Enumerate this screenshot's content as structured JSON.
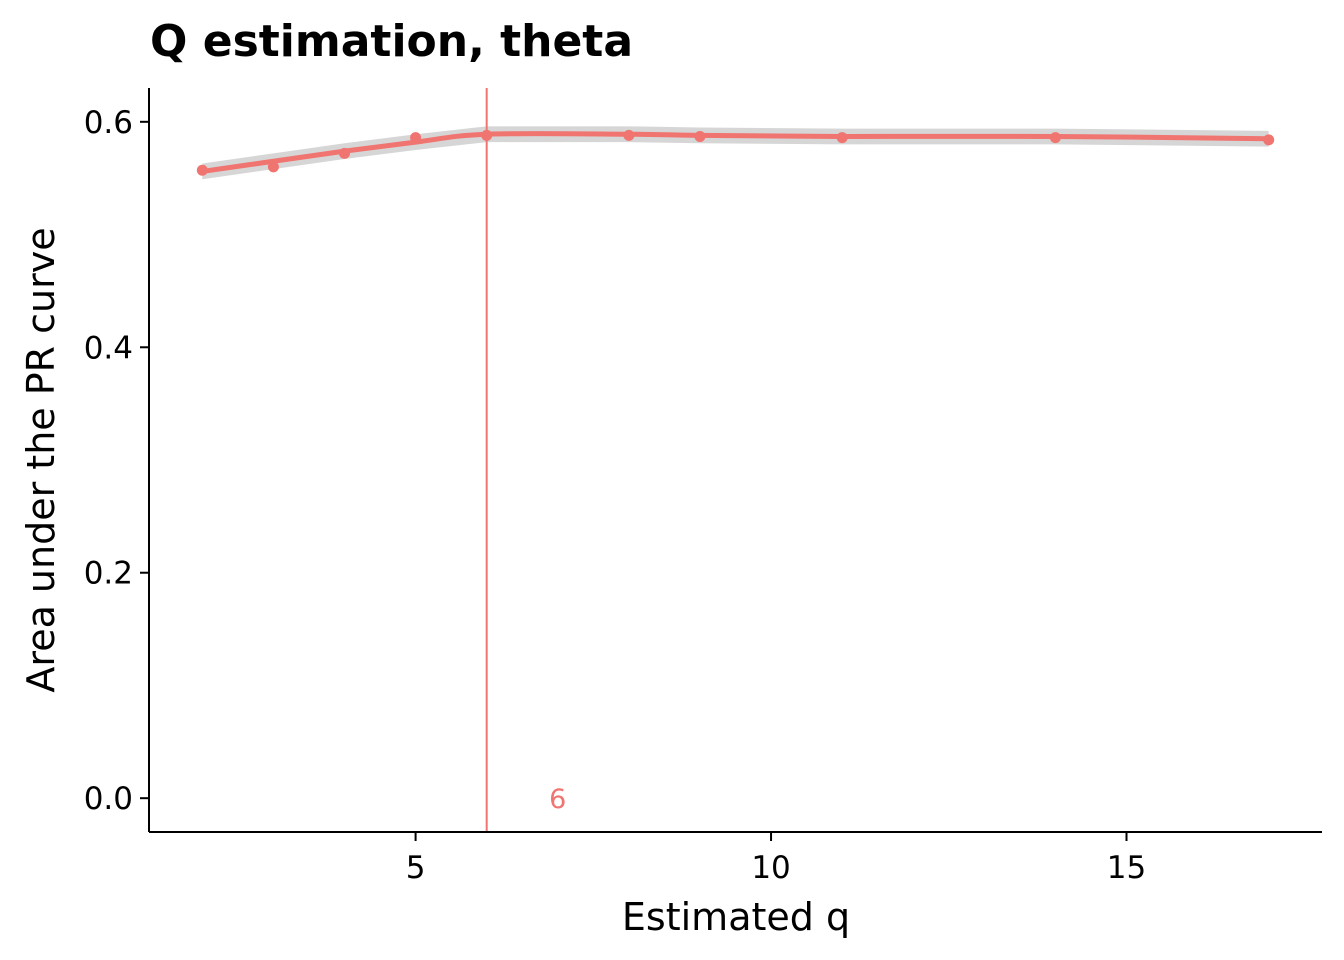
{
  "chart_data": {
    "type": "line",
    "title": "Q estimation, theta",
    "xlabel": "Estimated q",
    "ylabel": "Area under the PR curve",
    "xlim": [
      1.25,
      17.75
    ],
    "ylim": [
      -0.03,
      0.63
    ],
    "xticks": [
      5,
      10,
      15
    ],
    "xtick_labels": [
      "5",
      "10",
      "15"
    ],
    "yticks": [
      0.0,
      0.2,
      0.4,
      0.6
    ],
    "ytick_labels": [
      "0.0",
      "0.2",
      "0.4",
      "0.6"
    ],
    "grid": false,
    "legend": "none",
    "series": [
      {
        "x": [
          2,
          3,
          4,
          5,
          6,
          8,
          9,
          11,
          14,
          17
        ],
        "values": [
          0.557,
          0.56,
          0.572,
          0.586,
          0.588,
          0.588,
          0.587,
          0.586,
          0.586,
          0.584
        ],
        "smooth": [
          0.556,
          0.565,
          0.574,
          0.582,
          0.589,
          0.589,
          0.588,
          0.587,
          0.587,
          0.585
        ],
        "ci_halfwidth": 0.007
      }
    ],
    "vline": {
      "x": 6,
      "label": "6",
      "label_x": 7,
      "label_y": 0.0
    },
    "colors": {
      "series": "#f07470",
      "ribbon": "#cfcfcf",
      "axis": "#000000"
    }
  }
}
